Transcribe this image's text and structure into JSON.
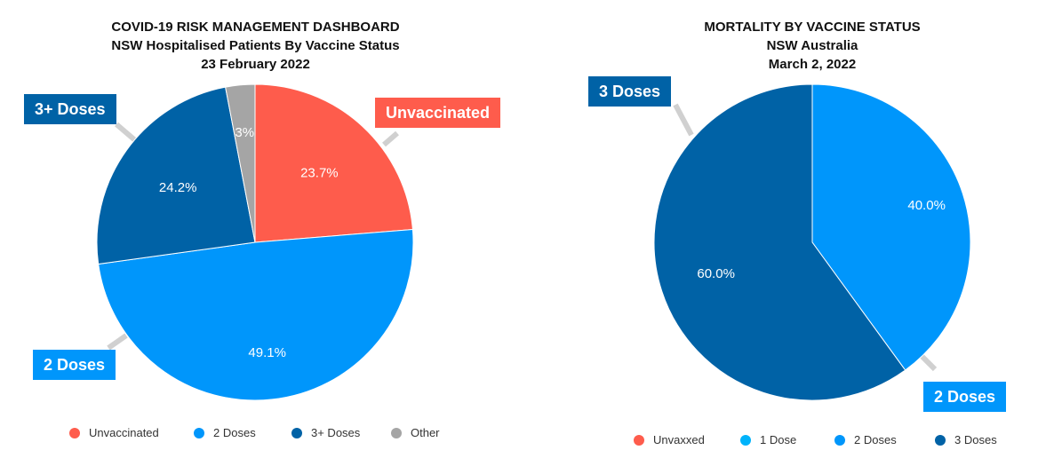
{
  "chart_data": [
    {
      "type": "pie",
      "title": "COVID-19 RISK MANAGEMENT DASHBOARD",
      "subtitle": "NSW Hospitalised Patients By Vaccine Status",
      "date": "23 February 2022",
      "slices": [
        {
          "name": "Unvaccinated",
          "value": 23.7,
          "label": "23.7%",
          "color": "#fe5c4c"
        },
        {
          "name": "2 Doses",
          "value": 49.1,
          "label": "49.1%",
          "color": "#0096fb"
        },
        {
          "name": "3+ Doses",
          "value": 24.2,
          "label": "24.2%",
          "color": "#0062a6"
        },
        {
          "name": "Other",
          "value": 3.0,
          "label": "3%",
          "color": "#a5a5a5"
        }
      ],
      "callouts": [
        {
          "text": "Unvaccinated",
          "color": "#fe5c4c"
        },
        {
          "text": "3+ Doses",
          "color": "#0062a6"
        },
        {
          "text": "2 Doses",
          "color": "#0096fb"
        }
      ],
      "legend": [
        {
          "label": "Unvaccinated",
          "color": "#fe5c4c"
        },
        {
          "label": "2 Doses",
          "color": "#0096fb"
        },
        {
          "label": "3+ Doses",
          "color": "#0062a6"
        },
        {
          "label": "Other",
          "color": "#a5a5a5"
        }
      ],
      "legend_position": "bottom"
    },
    {
      "type": "pie",
      "title": "MORTALITY BY VACCINE STATUS",
      "subtitle": "NSW Australia",
      "date": "March 2, 2022",
      "slices": [
        {
          "name": "2 Doses",
          "value": 40.0,
          "label": "40.0%",
          "color": "#0096fb"
        },
        {
          "name": "3 Doses",
          "value": 60.0,
          "label": "60.0%",
          "color": "#0062a6"
        }
      ],
      "callouts": [
        {
          "text": "3 Doses",
          "color": "#0062a6"
        },
        {
          "text": "2 Doses",
          "color": "#0096fb"
        }
      ],
      "legend": [
        {
          "label": "Unvaxxed",
          "color": "#fe5c4c"
        },
        {
          "label": "1 Dose",
          "color": "#00b3fb"
        },
        {
          "label": "2 Doses",
          "color": "#0096fb"
        },
        {
          "label": "3 Doses",
          "color": "#0062a6"
        }
      ],
      "legend_position": "bottom"
    }
  ]
}
